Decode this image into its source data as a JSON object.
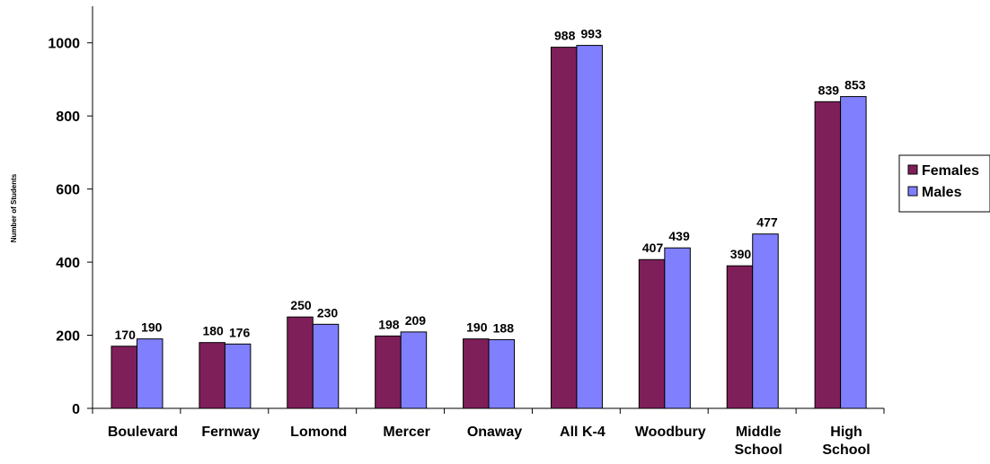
{
  "chart_data": {
    "type": "bar",
    "title": "",
    "xlabel": "",
    "ylabel": "Number of Students",
    "ylim": [
      0,
      1100
    ],
    "yticks": [
      0,
      200,
      400,
      600,
      800,
      1000
    ],
    "grid": false,
    "legend_position": "right",
    "categories": [
      [
        "Boulevard"
      ],
      [
        "Fernway"
      ],
      [
        "Lomond"
      ],
      [
        "Mercer"
      ],
      [
        "Onaway"
      ],
      [
        "All K-4"
      ],
      [
        "Woodbury"
      ],
      [
        "Middle",
        "School"
      ],
      [
        "High",
        "School"
      ]
    ],
    "series": [
      {
        "name": "Females",
        "color": "#7f1f5a",
        "values": [
          170,
          180,
          250,
          198,
          190,
          988,
          407,
          390,
          839
        ]
      },
      {
        "name": "Males",
        "color": "#8080ff",
        "values": [
          190,
          176,
          230,
          209,
          188,
          993,
          439,
          477,
          853
        ]
      }
    ]
  }
}
